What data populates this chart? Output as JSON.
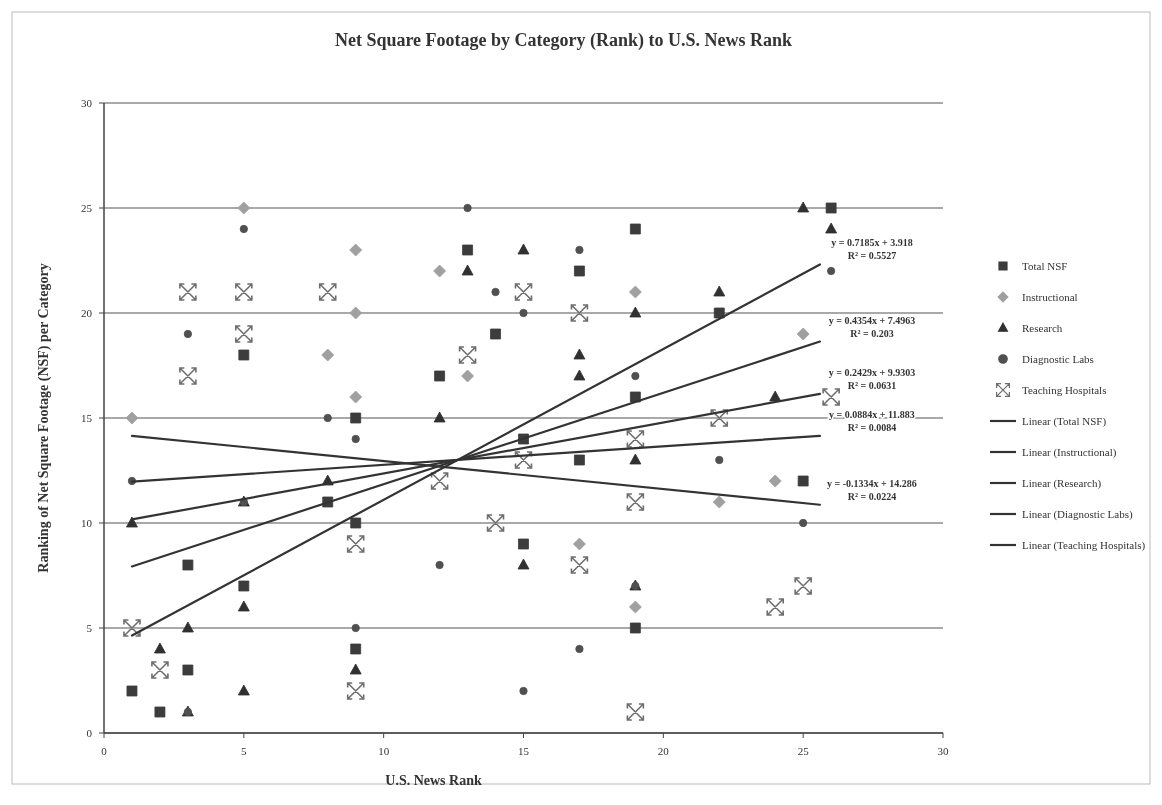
{
  "chart_data": {
    "type": "scatter",
    "title": "Net Square Footage by Category (Rank) to U.S. News Rank",
    "xlabel": "U.S. News Rank",
    "ylabel": "Ranking of Net Square Footage (NSF) per Category",
    "xlim": [
      0,
      30
    ],
    "xticks": [
      0,
      5,
      10,
      15,
      20,
      25,
      30
    ],
    "ylim": [
      0,
      30
    ],
    "yticks": [
      0,
      5,
      10,
      15,
      20,
      25,
      30
    ],
    "grid": "y",
    "legend": "right",
    "series": [
      {
        "name": "Total NSF",
        "marker": "square",
        "color": "#3c3c3c",
        "x": [
          1,
          2,
          3,
          3,
          5,
          5,
          8,
          9,
          9,
          9,
          12,
          13,
          14,
          15,
          15,
          17,
          17,
          19,
          19,
          19,
          22,
          25,
          26
        ],
        "values": [
          2,
          1,
          8,
          3,
          7,
          18,
          11,
          10,
          4,
          15,
          17,
          23,
          19,
          14,
          9,
          22,
          13,
          24,
          16,
          5,
          20,
          12,
          25
        ]
      },
      {
        "name": "Instructional",
        "marker": "diamond",
        "color": "#a0a0a0",
        "x": [
          1,
          5,
          8,
          9,
          9,
          9,
          12,
          13,
          17,
          19,
          19,
          22,
          24,
          25
        ],
        "values": [
          15,
          25,
          18,
          23,
          20,
          16,
          22,
          17,
          9,
          21,
          6,
          11,
          12,
          19
        ]
      },
      {
        "name": "Research",
        "marker": "triangle",
        "color": "#303030",
        "x": [
          1,
          2,
          3,
          3,
          5,
          5,
          5,
          8,
          9,
          12,
          13,
          15,
          15,
          17,
          17,
          19,
          19,
          19,
          22,
          24,
          25,
          26
        ],
        "values": [
          10,
          4,
          5,
          1,
          11,
          6,
          2,
          12,
          3,
          15,
          22,
          23,
          8,
          18,
          17,
          20,
          13,
          7,
          21,
          16,
          25,
          24
        ]
      },
      {
        "name": "Diagnostic Labs",
        "marker": "circle",
        "color": "#505050",
        "x": [
          1,
          3,
          3,
          5,
          5,
          8,
          9,
          9,
          12,
          13,
          14,
          15,
          15,
          17,
          17,
          19,
          19,
          22,
          25,
          26
        ],
        "values": [
          12,
          19,
          1,
          24,
          11,
          15,
          14,
          5,
          8,
          25,
          21,
          20,
          2,
          23,
          4,
          17,
          7,
          13,
          10,
          22
        ]
      },
      {
        "name": "Teaching Hospitals",
        "marker": "cross",
        "color": "#6e6e6e",
        "x": [
          1,
          2,
          3,
          3,
          5,
          5,
          8,
          9,
          9,
          12,
          13,
          14,
          15,
          15,
          17,
          17,
          19,
          19,
          19,
          22,
          24,
          25,
          26
        ],
        "values": [
          5,
          3,
          21,
          17,
          21,
          19,
          21,
          9,
          2,
          12,
          18,
          10,
          21,
          13,
          20,
          8,
          14,
          11,
          1,
          15,
          6,
          7,
          16
        ]
      },
      {
        "name": "Linear (Total NSF)",
        "type": "line",
        "color": "#333333",
        "x": [
          1,
          25.6
        ],
        "values": [
          4.64,
          22.31
        ]
      },
      {
        "name": "Linear (Instructional)",
        "type": "line",
        "color": "#333333",
        "x": [
          1,
          25.6
        ],
        "values": [
          7.93,
          18.64
        ]
      },
      {
        "name": "Linear (Research)",
        "type": "line",
        "color": "#333333",
        "x": [
          1,
          25.6
        ],
        "values": [
          10.17,
          16.15
        ]
      },
      {
        "name": "Linear (Diagnostic Labs)",
        "type": "line",
        "color": "#333333",
        "x": [
          1,
          25.6
        ],
        "values": [
          11.97,
          14.15
        ]
      },
      {
        "name": "Linear (Teaching Hospitals)",
        "type": "line",
        "color": "#333333",
        "x": [
          1,
          25.6
        ],
        "values": [
          14.15,
          10.87
        ]
      }
    ],
    "line_style": "solid",
    "annotations": [
      "y = 0.7185x + 3.918",
      "R² = 0.5527",
      "y = 0.4354x + 7.4963",
      "R² = 0.203",
      "y = 0.2429x + 9.9303",
      "R² = 0.0631",
      "y = 0.0884x + 11.883",
      "R² = 0.0084",
      "y = -0.1334x + 14.286",
      "R² = 0.0224"
    ]
  }
}
